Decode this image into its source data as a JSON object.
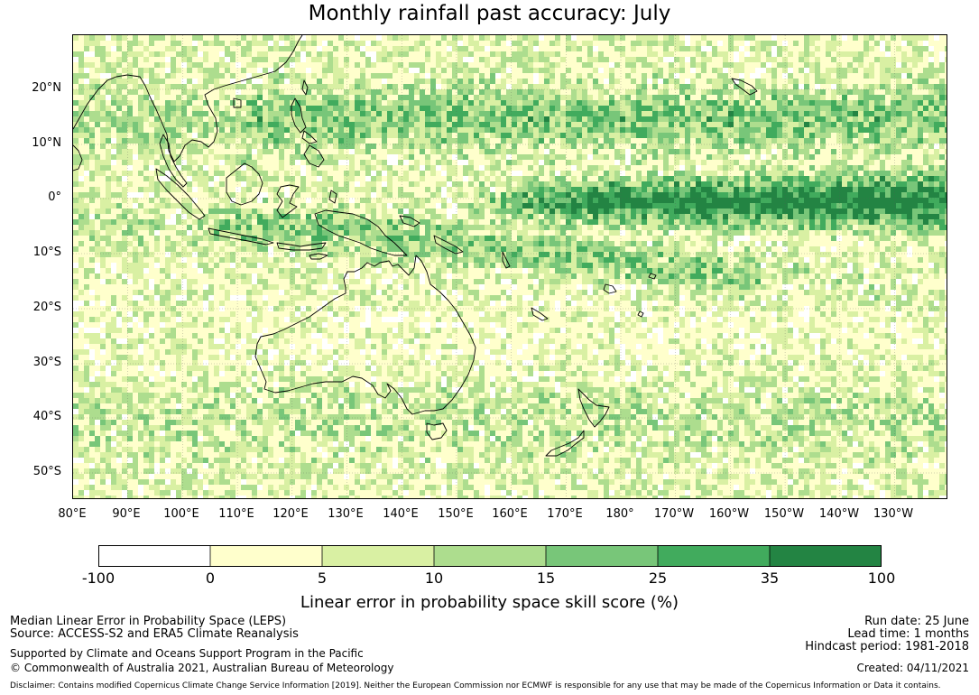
{
  "title": "Monthly rainfall past accuracy: July",
  "map": {
    "lat_labels": [
      "20°N",
      "10°N",
      "0°",
      "10°S",
      "20°S",
      "30°S",
      "40°S",
      "50°S"
    ],
    "lon_labels": [
      "80°E",
      "90°E",
      "100°E",
      "110°E",
      "120°E",
      "130°E",
      "140°E",
      "150°E",
      "160°E",
      "170°E",
      "180°",
      "170°W",
      "160°W",
      "150°W",
      "140°W",
      "130°W"
    ]
  },
  "colorbar": {
    "ticks": [
      "-100",
      "0",
      "5",
      "10",
      "15",
      "25",
      "35",
      "100"
    ],
    "colors": [
      "#ffffff",
      "#ffffcc",
      "#d9f0a3",
      "#addd8e",
      "#78c679",
      "#41ab5d",
      "#238443"
    ],
    "title": "Linear error in probability space skill score (%)"
  },
  "footer": {
    "left_line1": "Median Linear Error in Probability Space (LEPS)",
    "left_line2": "Source: ACCESS-S2 and ERA5 Climate Reanalysis",
    "left_line3": "Supported by Climate and Oceans Support Program in the Pacific",
    "left_line4": "© Commonwealth of Australia 2021, Australian Bureau of Meteorology",
    "right_line1": "Run date: 25 June",
    "right_line2": "Lead time: 1 months",
    "right_line3": "Hindcast period: 1981-2018",
    "right_line4": "Created: 04/11/2021",
    "disclaimer": "Disclaimer: Contains modified Copernicus Climate Change Service Information [2019]. Neither the European Commission nor ECMWF is responsible for any use that may be made of the Copernicus Information or Data it contains."
  }
}
